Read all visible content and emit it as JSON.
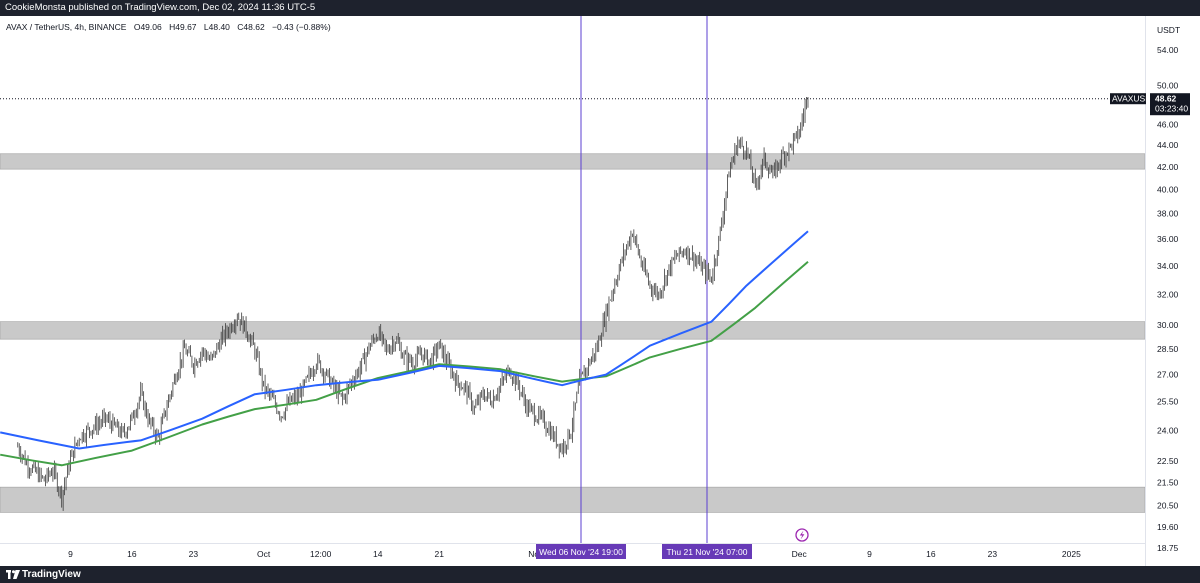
{
  "header": {
    "text": "CookieMonsta published on TradingView.com, Dec 02, 2024 11:36 UTC-5"
  },
  "footer": {
    "brand": "TradingView"
  },
  "legend": {
    "symbol": "AVAX / TetherUS, 4h, BINANCE",
    "open": "O49.06",
    "high": "H49.67",
    "low": "L48.40",
    "close": "C48.62",
    "change": "−0.43 (−0.88%)"
  },
  "chart_data": {
    "type": "candlestick",
    "currency": "USDT",
    "ylim": [
      18.4,
      56.5
    ],
    "y_ticks": [
      "54.00",
      "50.00",
      "46.00",
      "44.00",
      "42.00",
      "40.00",
      "38.00",
      "36.00",
      "34.00",
      "32.00",
      "30.00",
      "28.50",
      "27.00",
      "25.50",
      "24.00",
      "22.50",
      "21.50",
      "20.50",
      "19.60",
      "18.75"
    ],
    "x_ticks": [
      "9",
      "16",
      "23",
      "Oct",
      "12:00",
      "14",
      "21",
      "Nov",
      "Dec",
      "9",
      "16",
      "23",
      "2025"
    ],
    "price_label": {
      "symbol": "AVAXUSDT",
      "price": "48.62",
      "countdown": "03:23:40",
      "value": 48.62
    },
    "support_zones": [
      {
        "low": 41.8,
        "high": 43.2
      },
      {
        "low": 29.1,
        "high": 30.2
      },
      {
        "low": 20.2,
        "high": 21.3
      }
    ],
    "vertical_markers": [
      "Wed 06 Nov '24   19:00",
      "Thu 21 Nov '24   07:00"
    ],
    "price_path": [
      [
        "Sep 3",
        23.2
      ],
      [
        "Sep 4",
        22.4
      ],
      [
        "Sep 6",
        21.6
      ],
      [
        "Sep 7",
        22.1
      ],
      [
        "Sep 8",
        20.9
      ],
      [
        "Sep 9",
        22.6
      ],
      [
        "Sep 10",
        23.7
      ],
      [
        "Sep 12",
        24.3
      ],
      [
        "Sep 13",
        24.6
      ],
      [
        "Sep 14",
        24.2
      ],
      [
        "Sep 15",
        23.8
      ],
      [
        "Sep 16",
        24.6
      ],
      [
        "Sep 17",
        25.9
      ],
      [
        "Sep 18",
        24.4
      ],
      [
        "Sep 19",
        23.6
      ],
      [
        "Sep 20",
        25.3
      ],
      [
        "Sep 21",
        27.0
      ],
      [
        "Sep 22",
        28.5
      ],
      [
        "Sep 23",
        27.6
      ],
      [
        "Sep 24",
        28.4
      ],
      [
        "Sep 25",
        27.8
      ],
      [
        "Sep 26",
        28.9
      ],
      [
        "Sep 27",
        29.7
      ],
      [
        "Sep 28",
        30.6
      ],
      [
        "Sep 29",
        29.7
      ],
      [
        "Sep 30",
        28.4
      ],
      [
        "Oct 1",
        26.3
      ],
      [
        "Oct 2",
        25.6
      ],
      [
        "Oct 3",
        24.8
      ],
      [
        "Oct 4",
        25.5
      ],
      [
        "Oct 5",
        25.8
      ],
      [
        "Oct 6",
        26.7
      ],
      [
        "Oct 7",
        27.8
      ],
      [
        "Oct 8",
        27.1
      ],
      [
        "Oct 9",
        26.3
      ],
      [
        "Oct 10",
        25.6
      ],
      [
        "Oct 11",
        26.6
      ],
      [
        "Oct 12",
        27.4
      ],
      [
        "Oct 13",
        28.6
      ],
      [
        "Oct 14",
        29.5
      ],
      [
        "Oct 15",
        28.4
      ],
      [
        "Oct 16",
        29.1
      ],
      [
        "Oct 17",
        28.0
      ],
      [
        "Oct 18",
        27.7
      ],
      [
        "Oct 19",
        28.2
      ],
      [
        "Oct 20",
        27.8
      ],
      [
        "Oct 21",
        28.7
      ],
      [
        "Oct 22",
        27.6
      ],
      [
        "Oct 23",
        26.6
      ],
      [
        "Oct 24",
        26.2
      ],
      [
        "Oct 25",
        25.1
      ],
      [
        "Oct 26",
        25.9
      ],
      [
        "Oct 27",
        25.6
      ],
      [
        "Oct 28",
        26.4
      ],
      [
        "Oct 29",
        27.3
      ],
      [
        "Oct 30",
        26.4
      ],
      [
        "Oct 31",
        25.2
      ],
      [
        "Nov 1",
        24.8
      ],
      [
        "Nov 2",
        24.4
      ],
      [
        "Nov 3",
        23.7
      ],
      [
        "Nov 4",
        23.1
      ],
      [
        "Nov 5",
        24.0
      ],
      [
        "Nov 6",
        26.6
      ],
      [
        "Nov 7",
        27.6
      ],
      [
        "Nov 8",
        28.6
      ],
      [
        "Nov 9",
        30.8
      ],
      [
        "Nov 10",
        32.8
      ],
      [
        "Nov 11",
        34.8
      ],
      [
        "Nov 12",
        36.6
      ],
      [
        "Nov 13",
        34.2
      ],
      [
        "Nov 14",
        32.6
      ],
      [
        "Nov 15",
        32.0
      ],
      [
        "Nov 16",
        33.6
      ],
      [
        "Nov 17",
        34.7
      ],
      [
        "Nov 18",
        35.2
      ],
      [
        "Nov 19",
        34.6
      ],
      [
        "Nov 20",
        33.8
      ],
      [
        "Nov 21",
        33.1
      ],
      [
        "Nov 22",
        36.5
      ],
      [
        "Nov 23",
        41.5
      ],
      [
        "Nov 24",
        44.3
      ],
      [
        "Nov 25",
        43.5
      ],
      [
        "Nov 26",
        40.2
      ],
      [
        "Nov 27",
        42.7
      ],
      [
        "Nov 28",
        41.2
      ],
      [
        "Nov 29",
        42.9
      ],
      [
        "Nov 30",
        43.9
      ],
      [
        "Dec 1",
        45.2
      ],
      [
        "Dec 2",
        49.0
      ]
    ],
    "series": [
      {
        "name": "",
        "color": "#2962ff",
        "values": [
          [
            "Sep 1",
            23.9
          ],
          [
            "Sep 10",
            23.1
          ],
          [
            "Sep 17",
            23.5
          ],
          [
            "Sep 24",
            24.6
          ],
          [
            "Sep 30",
            25.9
          ],
          [
            "Oct 7",
            26.4
          ],
          [
            "Oct 14",
            26.7
          ],
          [
            "Oct 21",
            27.5
          ],
          [
            "Oct 28",
            27.2
          ],
          [
            "Nov 4",
            26.4
          ],
          [
            "Nov 9",
            27.0
          ],
          [
            "Nov 14",
            28.7
          ],
          [
            "Nov 21",
            30.2
          ],
          [
            "Nov 25",
            32.6
          ],
          [
            "Dec 2",
            36.6
          ]
        ]
      },
      {
        "name": "",
        "color": "#43a047",
        "values": [
          [
            "Sep 1",
            22.8
          ],
          [
            "Sep 8",
            22.3
          ],
          [
            "Sep 16",
            23.0
          ],
          [
            "Sep 24",
            24.3
          ],
          [
            "Sep 30",
            25.1
          ],
          [
            "Oct 7",
            25.6
          ],
          [
            "Oct 14",
            26.8
          ],
          [
            "Oct 21",
            27.6
          ],
          [
            "Oct 28",
            27.3
          ],
          [
            "Nov 4",
            26.6
          ],
          [
            "Nov 9",
            26.9
          ],
          [
            "Nov 14",
            28.0
          ],
          [
            "Nov 21",
            29.0
          ],
          [
            "Nov 26",
            31.1
          ],
          [
            "Dec 2",
            34.3
          ]
        ]
      }
    ]
  }
}
